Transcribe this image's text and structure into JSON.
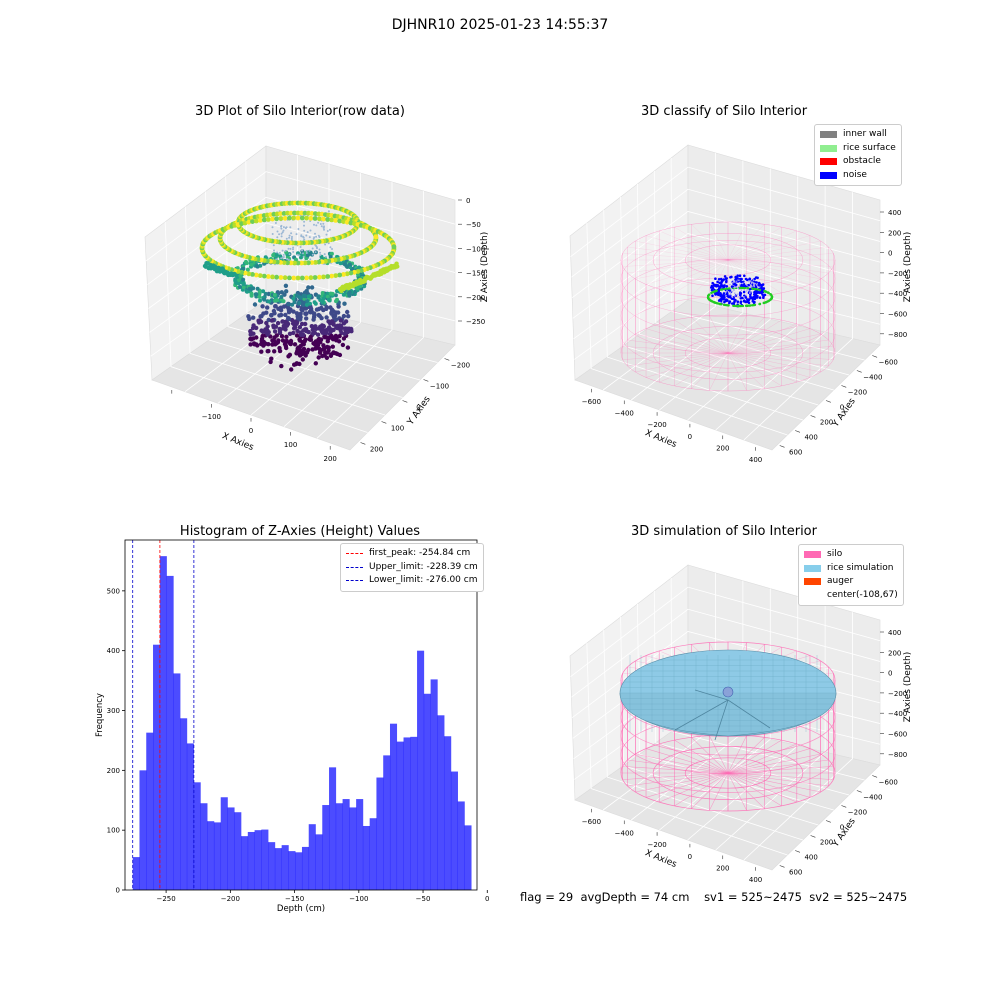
{
  "figure": {
    "suptitle": "DJHNR10 2025-01-23 14:55:37",
    "footer": {
      "flag": "flag = 29",
      "avg_depth": "avgDepth = 74 cm",
      "sv1": "sv1 = 525~2475",
      "sv2": "sv2 = 525~2475"
    }
  },
  "chart_data": [
    {
      "type": "scatter",
      "title": "3D Plot of Silo Interior(row data)",
      "xlabel": "X Axies",
      "ylabel": "Y Axies",
      "zlabel": "Z Axies (Depth)",
      "x_ticks": [
        "−100",
        "0",
        "100",
        "200"
      ],
      "y_ticks": [
        "−200",
        "−100",
        "0",
        "100",
        "200"
      ],
      "z_ticks": [
        "0",
        "−50",
        "−100",
        "−150",
        "−200",
        "−250"
      ],
      "colormap": "viridis",
      "zlim": [
        -280,
        0
      ]
    },
    {
      "type": "scatter",
      "title": "3D classify of Silo Interior",
      "xlabel": "X Axies",
      "ylabel": "Y Axies",
      "zlabel": "Z Axies (Depth)",
      "x_ticks": [
        "−600",
        "−400",
        "−200",
        "0",
        "200",
        "400"
      ],
      "y_ticks": [
        "−600",
        "−400",
        "−200",
        "0",
        "200",
        "400",
        "600"
      ],
      "z_ticks": [
        "400",
        "200",
        "0",
        "−200",
        "−400",
        "−600",
        "−800"
      ],
      "legend": [
        {
          "label": "inner wall",
          "color": "#808080"
        },
        {
          "label": "rice surface",
          "color": "#90ee90"
        },
        {
          "label": "obstacle",
          "color": "#ff0000"
        },
        {
          "label": "noise",
          "color": "#0000ff"
        }
      ],
      "silo_color": "#ff69b4"
    },
    {
      "type": "bar",
      "title": "Histogram of Z-Axies (Height) Values",
      "xlabel": "Depth (cm)",
      "ylabel": "Frequency",
      "xlim": [
        -282,
        -8
      ],
      "ylim": [
        0,
        585
      ],
      "x_ticks": [
        -250,
        -200,
        -150,
        -100,
        -50,
        0
      ],
      "x_tick_labels": [
        "−250",
        "−200",
        "−150",
        "−100",
        "−50",
        "0"
      ],
      "y_ticks": [
        0,
        100,
        200,
        300,
        400,
        500
      ],
      "bin_start": -276,
      "bin_width": 5.27,
      "bar_color": "#0000ff",
      "bar_alpha": 0.7,
      "values": [
        55,
        200,
        263,
        410,
        558,
        525,
        362,
        287,
        245,
        180,
        145,
        115,
        113,
        155,
        138,
        130,
        90,
        97,
        100,
        101,
        80,
        70,
        75,
        65,
        63,
        72,
        110,
        93,
        142,
        205,
        145,
        152,
        138,
        152,
        107,
        120,
        188,
        225,
        278,
        248,
        255,
        256,
        400,
        328,
        352,
        292,
        257,
        198,
        148,
        108
      ],
      "vlines": [
        {
          "x": -254.84,
          "label": "first_peak: -254.84 cm",
          "color": "#ff0000"
        },
        {
          "x": -228.39,
          "label": "Upper_limit: -228.39 cm",
          "color": "#0000cc"
        },
        {
          "x": -276.0,
          "label": "Lower_limit: -276.00 cm",
          "color": "#0000cc"
        }
      ]
    },
    {
      "type": "scatter",
      "title": "3D simulation of Silo Interior",
      "xlabel": "X Axies",
      "ylabel": "Y Axies",
      "zlabel": "Z Axies (Depth)",
      "x_ticks": [
        "−600",
        "−400",
        "−200",
        "0",
        "200",
        "400"
      ],
      "y_ticks": [
        "−600",
        "−400",
        "−200",
        "0",
        "200",
        "400",
        "600"
      ],
      "z_ticks": [
        "400",
        "200",
        "0",
        "−200",
        "−400",
        "−600",
        "−800"
      ],
      "legend": [
        {
          "label": "silo",
          "color": "#ff69b4"
        },
        {
          "label": "rice simulation",
          "color": "#87ceeb"
        },
        {
          "label": "auger",
          "color": "#ff4500"
        },
        {
          "label": "center(-108,67)",
          "color": ""
        }
      ]
    }
  ]
}
